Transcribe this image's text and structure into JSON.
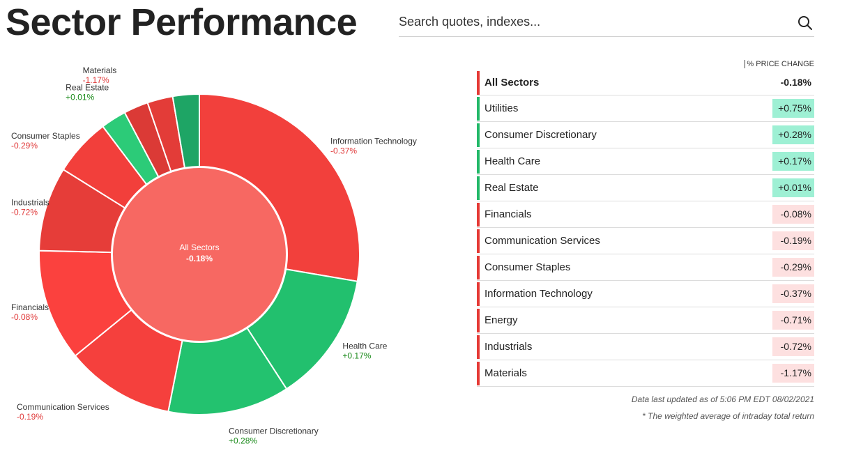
{
  "header": {
    "title": "Sector Performance",
    "search_placeholder": "Search quotes, indexes..."
  },
  "colors": {
    "positive_text": "#1a8a1a",
    "negative_text": "#e03a3a",
    "positive_bar": "#22b868",
    "negative_bar": "#e53935",
    "positive_badge": "#9ef0d4",
    "negative_badge": "#fde0e0"
  },
  "chart_data": {
    "type": "pie",
    "center": {
      "label": "All Sectors",
      "value": "-0.18%"
    },
    "slices": [
      {
        "name": "Information Technology",
        "label": "-0.37%",
        "value": -0.37,
        "share": 28.0,
        "color": "#f2403c"
      },
      {
        "name": "Health Care",
        "label": "+0.17%",
        "value": 0.17,
        "share": 13.3,
        "color": "#22c06e"
      },
      {
        "name": "Consumer Discretionary",
        "label": "+0.28%",
        "value": 0.28,
        "share": 12.4,
        "color": "#23c26f"
      },
      {
        "name": "Communication Services",
        "label": "-0.19%",
        "value": -0.19,
        "share": 11.1,
        "color": "#f5403d"
      },
      {
        "name": "Financials",
        "label": "-0.08%",
        "value": -0.08,
        "share": 11.4,
        "color": "#fb413e"
      },
      {
        "name": "Industrials",
        "label": "-0.72%",
        "value": -0.72,
        "share": 8.6,
        "color": "#e63d39"
      },
      {
        "name": "Consumer Staples",
        "label": "-0.29%",
        "value": -0.29,
        "share": 5.9,
        "color": "#f23f3b"
      },
      {
        "name": "Real Estate",
        "label": "+0.01%",
        "value": 0.01,
        "share": 2.6,
        "color": "#2ccb78"
      },
      {
        "name": "Materials",
        "label": "-1.17%",
        "value": -1.17,
        "share": 2.5,
        "color": "#db3a36"
      },
      {
        "name": "Energy",
        "label": "",
        "value": -0.71,
        "share": 2.6,
        "color": "#e33c38"
      },
      {
        "name": "Utilities",
        "label": "",
        "value": 0.75,
        "share": 2.7,
        "color": "#1ea565"
      }
    ],
    "labels": [
      {
        "slice": "Information Technology",
        "pos": "right"
      },
      {
        "slice": "Health Care",
        "pos": "right"
      },
      {
        "slice": "Consumer Discretionary",
        "pos": "bottom"
      },
      {
        "slice": "Communication Services",
        "pos": "bottom-left"
      },
      {
        "slice": "Financials",
        "pos": "left"
      },
      {
        "slice": "Industrials",
        "pos": "left"
      },
      {
        "slice": "Consumer Staples",
        "pos": "left"
      },
      {
        "slice": "Real Estate",
        "pos": "top-left"
      },
      {
        "slice": "Materials",
        "pos": "top"
      }
    ]
  },
  "table": {
    "column_header": "% PRICE CHANGE",
    "rows": [
      {
        "name": "All Sectors",
        "value": "-0.18%",
        "positive": false,
        "bold": true
      },
      {
        "name": "Utilities",
        "value": "+0.75%",
        "positive": true
      },
      {
        "name": "Consumer Discretionary",
        "value": "+0.28%",
        "positive": true
      },
      {
        "name": "Health Care",
        "value": "+0.17%",
        "positive": true
      },
      {
        "name": "Real Estate",
        "value": "+0.01%",
        "positive": true
      },
      {
        "name": "Financials",
        "value": "-0.08%",
        "positive": false
      },
      {
        "name": "Communication Services",
        "value": "-0.19%",
        "positive": false
      },
      {
        "name": "Consumer Staples",
        "value": "-0.29%",
        "positive": false
      },
      {
        "name": "Information Technology",
        "value": "-0.37%",
        "positive": false
      },
      {
        "name": "Energy",
        "value": "-0.71%",
        "positive": false
      },
      {
        "name": "Industrials",
        "value": "-0.72%",
        "positive": false
      },
      {
        "name": "Materials",
        "value": "-1.17%",
        "positive": false
      }
    ]
  },
  "footer": {
    "updated": "Data last updated as of 5:06 PM EDT 08/02/2021",
    "note": "* The weighted average of intraday total return"
  }
}
